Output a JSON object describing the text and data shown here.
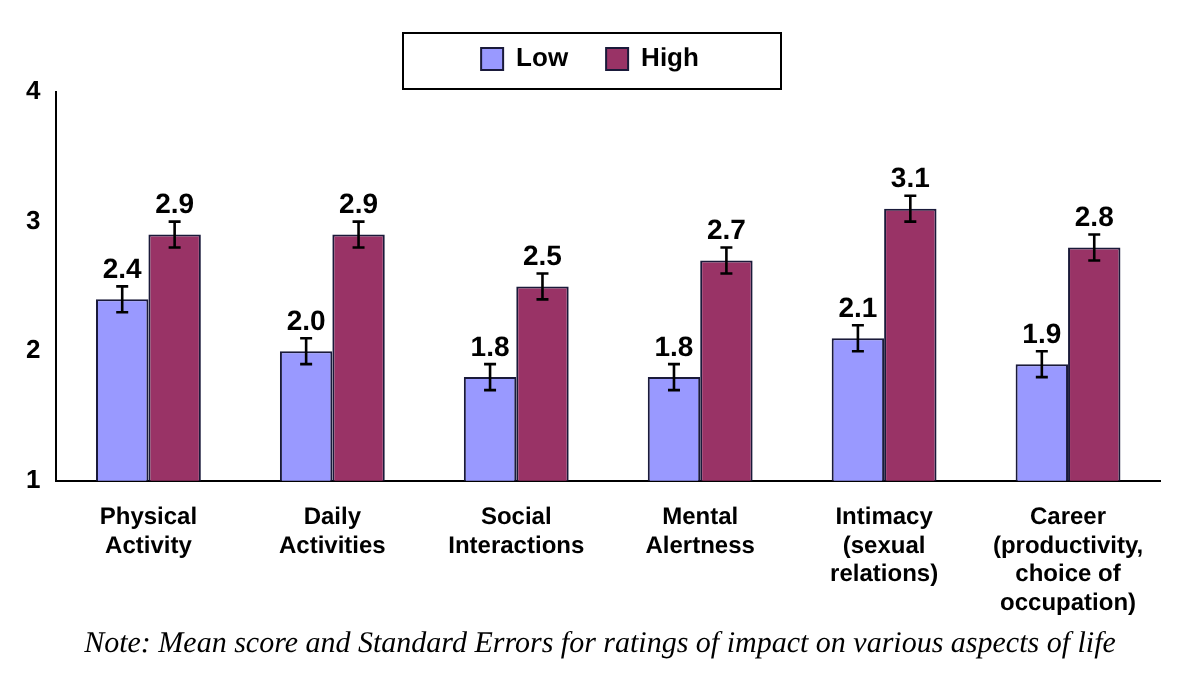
{
  "chart_data": {
    "type": "bar",
    "categories": [
      "Physical Activity",
      "Daily Activities",
      "Social Interactions",
      "Mental Alertness",
      "Intimacy (sexual relations)",
      "Career (productivity, choice of occupation)"
    ],
    "series": [
      {
        "name": "Low",
        "color": "#9999ff",
        "values": [
          2.4,
          2.0,
          1.8,
          1.8,
          2.1,
          1.9
        ],
        "errors": [
          0.1,
          0.1,
          0.1,
          0.1,
          0.1,
          0.1
        ],
        "value_labels": [
          "2.4",
          "2.0",
          "1.8",
          "1.8",
          "2.1",
          "1.9"
        ]
      },
      {
        "name": "High",
        "color": "#993366",
        "values": [
          2.9,
          2.9,
          2.5,
          2.7,
          3.1,
          2.8
        ],
        "errors": [
          0.1,
          0.1,
          0.1,
          0.1,
          0.1,
          0.1
        ],
        "value_labels": [
          "2.9",
          "2.9",
          "2.5",
          "2.7",
          "3.1",
          "2.8"
        ]
      }
    ],
    "ylim": [
      1,
      4
    ],
    "yticks": [
      1,
      2,
      3,
      4
    ],
    "grid": false,
    "legend": "top",
    "annotations": [
      "Note: Mean score and Standard Errors for ratings of impact on various aspects of life"
    ]
  }
}
